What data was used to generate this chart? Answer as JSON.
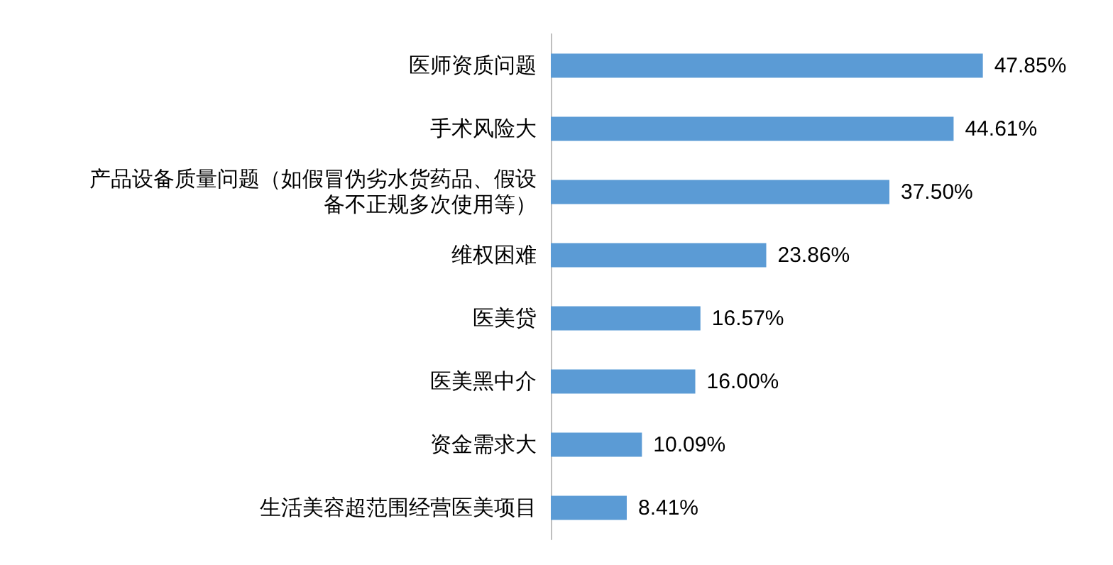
{
  "chart_data": {
    "type": "bar",
    "orientation": "horizontal",
    "categories": [
      "医师资质问题",
      "手术风险大",
      "产品设备质量问题（如假冒伪劣水货药品、假设备不正规多次使用等）",
      "维权困难",
      "医美贷",
      "医美黑中介",
      "资金需求大",
      "生活美容超范围经营医美项目"
    ],
    "values": [
      47.85,
      44.61,
      37.5,
      23.86,
      16.57,
      16.0,
      10.09,
      8.41
    ],
    "value_labels": [
      "47.85%",
      "44.61%",
      "37.50%",
      "23.86%",
      "16.57%",
      "16.00%",
      "10.09%",
      "8.41%"
    ],
    "color": "#5b9bd5"
  }
}
